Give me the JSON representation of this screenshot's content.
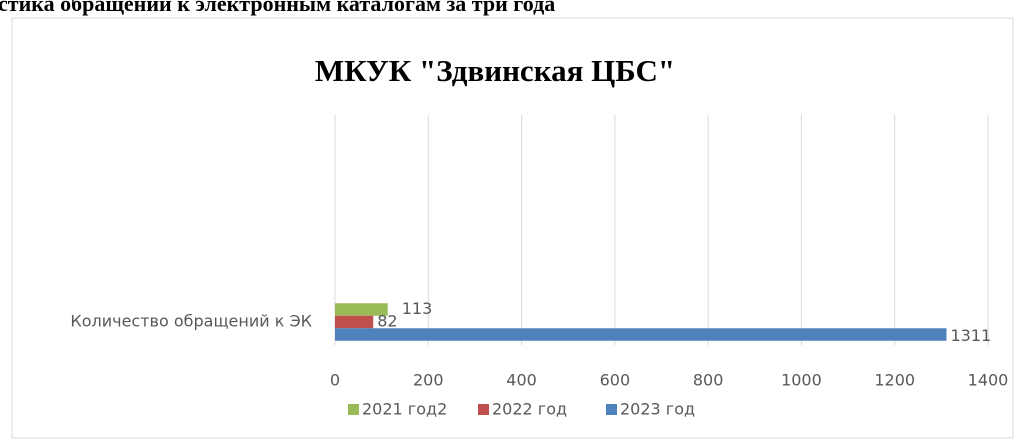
{
  "heading": "стика обращений к электронным каталогам за три года",
  "chart_data": {
    "type": "hbar",
    "title": "МКУК \"Здвинская ЦБС\"",
    "categories": [
      "Количество обращений к ЭК"
    ],
    "series": [
      {
        "name": "2021 год2",
        "color": "#9bbb59",
        "values": [
          113
        ]
      },
      {
        "name": "2022 год",
        "color": "#c0504d",
        "values": [
          82
        ]
      },
      {
        "name": "2023 год",
        "color": "#4f81bd",
        "values": [
          1311
        ]
      }
    ],
    "xlim": [
      0,
      1400
    ],
    "xticks": [
      0,
      200,
      400,
      600,
      800,
      1000,
      1200,
      1400
    ],
    "grid": true,
    "legend": "bottom"
  }
}
